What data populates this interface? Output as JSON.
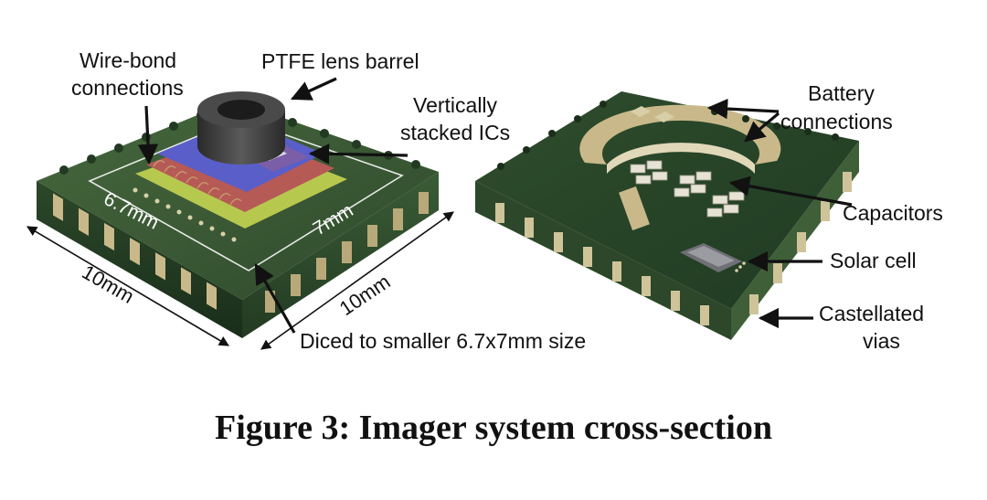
{
  "caption": "Figure 3: Imager system cross-section",
  "labels": {
    "wire_bond_1": "Wire-bond",
    "wire_bond_2": "connections",
    "ptfe": "PTFE lens barrel",
    "stacked_1": "Vertically",
    "stacked_2": "stacked ICs",
    "diced": "Diced to smaller 6.7x7mm size",
    "battery_1": "Battery",
    "battery_2": "connections",
    "capacitors": "Capacitors",
    "solar": "Solar cell",
    "castellated_1": "Castellated",
    "castellated_2": "vias"
  },
  "dimensions": {
    "inner_left": "6.7mm",
    "inner_right": "7mm",
    "outer_left": "10mm",
    "outer_right": "10mm"
  },
  "colors": {
    "pcb_top": "#3a5a34",
    "pcb_side": "#223a22",
    "gold": "#c9b98a",
    "lens": "#3b3b3b",
    "ic_blue": "#5a5ec8",
    "ic_red": "#b65a55",
    "ic_green": "#b7c84e"
  }
}
